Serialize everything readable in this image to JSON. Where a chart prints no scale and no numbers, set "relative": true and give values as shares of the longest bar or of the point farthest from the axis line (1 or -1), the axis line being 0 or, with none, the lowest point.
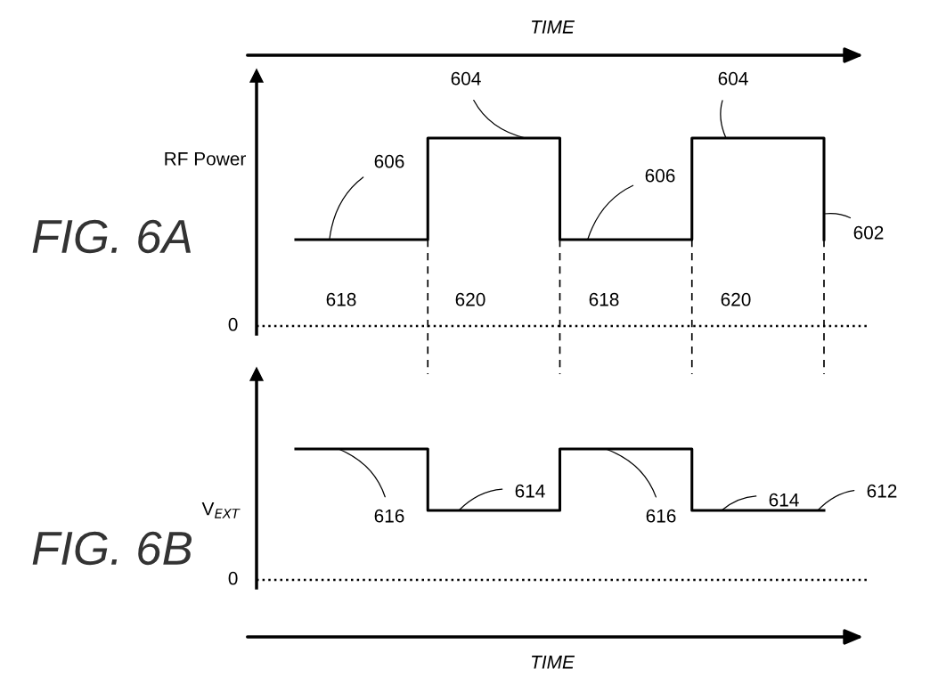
{
  "chart_data": [
    {
      "type": "step",
      "title": "FIG. 6A",
      "grid": "x",
      "xlabel": "TIME",
      "ylabel": "RF Power",
      "relative": true,
      "categories": [
        null,
        null,
        null,
        null,
        null
      ],
      "series": [
        {
          "color": "#000000",
          "values": [
            0.46,
            1,
            0.46,
            1,
            0.46
          ]
        }
      ],
      "ref_lines": [
        {
          "axis": "y",
          "value": 0,
          "label": "0",
          "line_style": "dotted",
          "color": "#000000"
        }
      ],
      "annotations": [
        "604",
        "604",
        "606",
        "606",
        "602",
        "618",
        "620",
        "618",
        "620"
      ]
    },
    {
      "type": "step",
      "title": "FIG. 6B",
      "xlabel": "TIME",
      "ylabel": "V$_{EXT}$",
      "relative": true,
      "categories": [
        null,
        null,
        null,
        null,
        null
      ],
      "series": [
        {
          "color": "#000000",
          "values": [
            1,
            0.53,
            1,
            0.53,
            0.53
          ]
        }
      ],
      "ref_lines": [
        {
          "axis": "y",
          "value": 0,
          "label": "0",
          "line_style": "dotted",
          "color": "#000000"
        }
      ],
      "annotations": [
        "616",
        "614",
        "616",
        "614",
        "612"
      ]
    }
  ]
}
